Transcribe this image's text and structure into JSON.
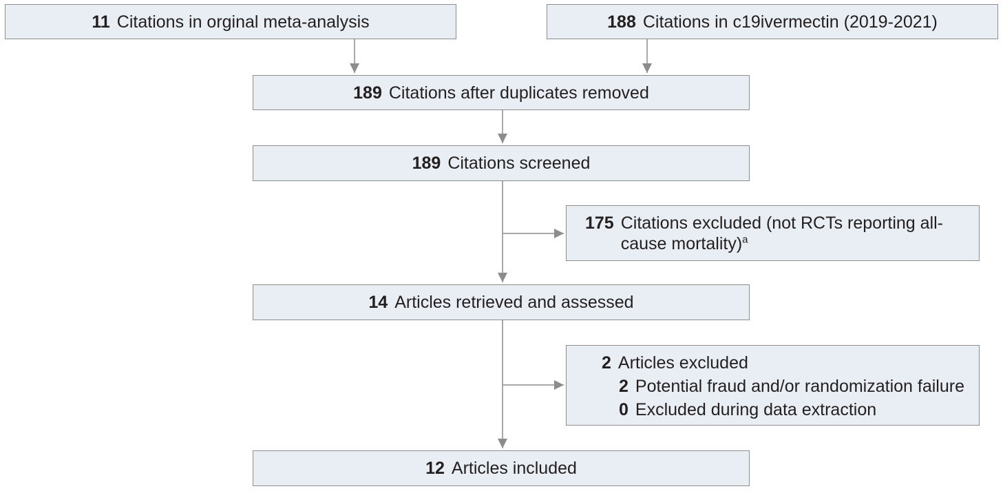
{
  "colors": {
    "box_fill": "#e8eef3",
    "box_border": "#8c8c8c",
    "arrow": "#8c8c8c",
    "text": "#231f20"
  },
  "boxes": {
    "original_meta_analysis": {
      "count": "11",
      "label": "Citations in orginal meta-analysis"
    },
    "c19ivermectin": {
      "count": "188",
      "label": "Citations in c19ivermectin (2019-2021)"
    },
    "duplicates_removed": {
      "count": "189",
      "label": "Citations after duplicates removed"
    },
    "screened": {
      "count": "189",
      "label": "Citations screened"
    },
    "excluded_citations": {
      "count": "175",
      "label": "Citations excluded (not RCTs reporting all-cause mortality)",
      "footnote": "a"
    },
    "retrieved": {
      "count": "14",
      "label": "Articles retrieved and assessed"
    },
    "excluded_articles": {
      "count": "2",
      "label": "Articles excluded",
      "reasons": [
        {
          "count": "2",
          "label": "Potential fraud and/or randomization failure"
        },
        {
          "count": "0",
          "label": "Excluded during data extraction"
        }
      ]
    },
    "included": {
      "count": "12",
      "label": "Articles included"
    }
  }
}
